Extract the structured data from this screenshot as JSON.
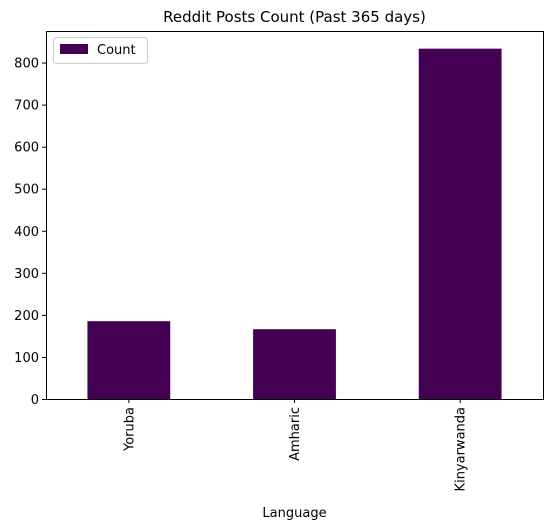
{
  "chart_data": {
    "type": "bar",
    "title": "Reddit Posts Count (Past 365 days)",
    "xlabel": "Language",
    "ylabel": "",
    "categories": [
      "Yoruba",
      "Amharic",
      "Kinyarwanda"
    ],
    "series": [
      {
        "name": "Count",
        "values": [
          185,
          166,
          833
        ],
        "color": "#440154"
      }
    ],
    "ylim": [
      0,
      875
    ],
    "yticks": [
      0,
      100,
      200,
      300,
      400,
      500,
      600,
      700,
      800
    ],
    "grid": false,
    "legend": "top-left"
  }
}
